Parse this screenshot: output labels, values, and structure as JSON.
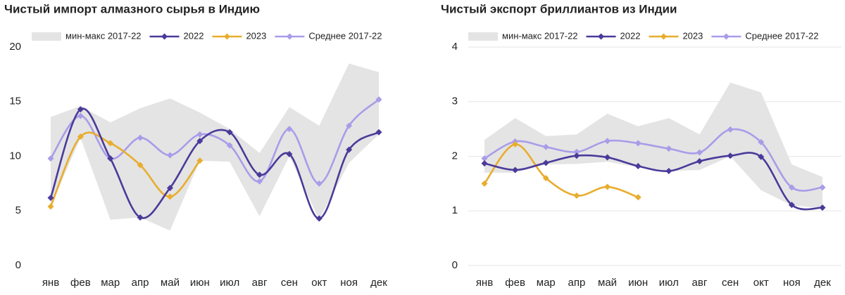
{
  "chart_data": [
    {
      "type": "line",
      "title": "Чистый импорт алмазного сырья в Индию",
      "categories": [
        "янв",
        "фев",
        "мар",
        "апр",
        "май",
        "июн",
        "июл",
        "авг",
        "сен",
        "окт",
        "ноя",
        "дек"
      ],
      "ylim": [
        0,
        20
      ],
      "yticks": [
        0,
        5,
        10,
        15,
        20
      ],
      "grid": false,
      "band": {
        "name": "мин-макс 2017-22",
        "color": "#e4e4e4",
        "high": [
          13.6,
          14.6,
          13.1,
          14.4,
          15.3,
          14.0,
          12.5,
          10.3,
          14.5,
          12.8,
          18.5,
          17.7
        ],
        "low": [
          5.4,
          11.7,
          4.2,
          4.4,
          3.2,
          9.6,
          9.5,
          4.5,
          10.0,
          4.2,
          9.4,
          12.0
        ]
      },
      "series": [
        {
          "name": "2022",
          "color": "#4b3a9a",
          "values": [
            6.2,
            14.3,
            9.8,
            4.4,
            7.1,
            11.4,
            12.2,
            8.3,
            10.2,
            4.3,
            10.6,
            12.2
          ]
        },
        {
          "name": "2023",
          "color": "#e8ad2e",
          "values": [
            5.4,
            11.8,
            11.2,
            9.2,
            6.3,
            9.6,
            null,
            null,
            null,
            null,
            null,
            null
          ]
        },
        {
          "name": "Среднее 2017-22",
          "color": "#a99ce9",
          "values": [
            9.8,
            13.7,
            9.8,
            11.7,
            10.1,
            12.0,
            11.0,
            7.7,
            12.5,
            7.5,
            12.8,
            15.2
          ]
        }
      ]
    },
    {
      "type": "line",
      "title": "Чистый экспорт бриллиантов из Индии",
      "categories": [
        "янв",
        "фев",
        "мар",
        "апр",
        "май",
        "июн",
        "июл",
        "авг",
        "сен",
        "окт",
        "ноя",
        "дек"
      ],
      "ylim": [
        0,
        4
      ],
      "yticks": [
        0,
        1,
        2,
        3,
        4
      ],
      "grid": true,
      "band": {
        "name": "мин-макс 2017-22",
        "color": "#e4e4e4",
        "high": [
          2.3,
          2.7,
          2.37,
          2.4,
          2.78,
          2.55,
          2.7,
          2.4,
          3.35,
          3.17,
          1.85,
          1.62
        ],
        "low": [
          1.7,
          1.7,
          1.85,
          1.86,
          1.9,
          1.8,
          1.73,
          1.75,
          2.0,
          1.38,
          1.1,
          1.05
        ]
      },
      "series": [
        {
          "name": "2022",
          "color": "#4b3a9a",
          "values": [
            1.87,
            1.75,
            1.88,
            2.01,
            1.98,
            1.82,
            1.73,
            1.91,
            2.01,
            1.99,
            1.11,
            1.06
          ]
        },
        {
          "name": "2023",
          "color": "#e8ad2e",
          "values": [
            1.5,
            2.22,
            1.6,
            1.28,
            1.44,
            1.25,
            null,
            null,
            null,
            null,
            null,
            null
          ]
        },
        {
          "name": "Среднее 2017-22",
          "color": "#a99ce9",
          "values": [
            1.96,
            2.27,
            2.17,
            2.08,
            2.28,
            2.24,
            2.14,
            2.07,
            2.49,
            2.26,
            1.43,
            1.43
          ]
        }
      ]
    }
  ]
}
